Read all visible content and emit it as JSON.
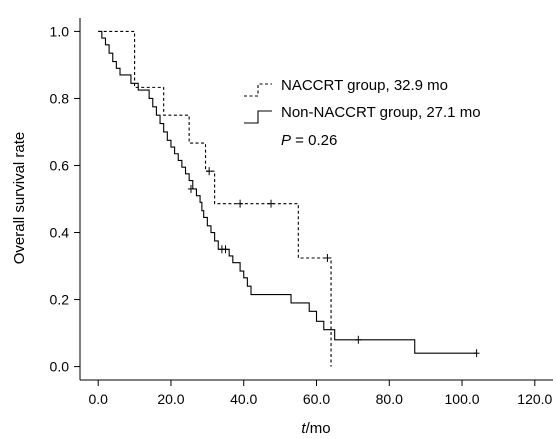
{
  "chart_data": {
    "type": "line",
    "subtype": "kaplan-meier step",
    "xlabel_prefix": "t",
    "xlabel_suffix": "/mo",
    "ylabel": "Overall survival rate",
    "xlim": [
      -5,
      125
    ],
    "ylim": [
      -0.04,
      1.04
    ],
    "xticks": [
      0,
      20,
      40,
      60,
      80,
      100,
      120
    ],
    "xtick_labels": [
      "0.0",
      "20.0",
      "40.0",
      "60.0",
      "80.0",
      "100.0",
      "120.0"
    ],
    "yticks": [
      0,
      0.2,
      0.4,
      0.6,
      0.8,
      1.0
    ],
    "ytick_labels": [
      "0.0",
      "0.2",
      "0.4",
      "0.6",
      "0.8",
      "1.0"
    ],
    "grid": false,
    "legend_position": "top-right",
    "annotation": {
      "italic": "P",
      "text": " = 0.26"
    },
    "series": [
      {
        "name": "NACCRT group, 32.9 mo",
        "style": "dashed",
        "steps": [
          [
            0,
            1.0
          ],
          [
            10,
            0.833
          ],
          [
            18,
            0.75
          ],
          [
            25,
            0.667
          ],
          [
            29.5,
            0.583
          ],
          [
            32,
            0.486
          ],
          [
            55,
            0.324
          ],
          [
            64,
            0.0
          ]
        ],
        "end_x": 64,
        "censored": [
          [
            30.5,
            0.583
          ],
          [
            39,
            0.486
          ],
          [
            47.5,
            0.486
          ],
          [
            63,
            0.324
          ]
        ]
      },
      {
        "name": "Non-NACCRT group, 27.1 mo",
        "style": "solid",
        "steps": [
          [
            0,
            1.0
          ],
          [
            1,
            0.98
          ],
          [
            2,
            0.96
          ],
          [
            3,
            0.935
          ],
          [
            4,
            0.91
          ],
          [
            5,
            0.89
          ],
          [
            6,
            0.87
          ],
          [
            9,
            0.845
          ],
          [
            11,
            0.825
          ],
          [
            14,
            0.8
          ],
          [
            15,
            0.775
          ],
          [
            16,
            0.75
          ],
          [
            17,
            0.725
          ],
          [
            18,
            0.7
          ],
          [
            19,
            0.675
          ],
          [
            20,
            0.655
          ],
          [
            21,
            0.635
          ],
          [
            22,
            0.615
          ],
          [
            23,
            0.595
          ],
          [
            24,
            0.575
          ],
          [
            25,
            0.555
          ],
          [
            26,
            0.53
          ],
          [
            27,
            0.51
          ],
          [
            28,
            0.49
          ],
          [
            28.5,
            0.465
          ],
          [
            29,
            0.445
          ],
          [
            30,
            0.42
          ],
          [
            31,
            0.4
          ],
          [
            32,
            0.375
          ],
          [
            33,
            0.35
          ],
          [
            36,
            0.33
          ],
          [
            37,
            0.31
          ],
          [
            39,
            0.285
          ],
          [
            40,
            0.265
          ],
          [
            41,
            0.24
          ],
          [
            42,
            0.215
          ],
          [
            53,
            0.19
          ],
          [
            58,
            0.165
          ],
          [
            60,
            0.135
          ],
          [
            62,
            0.11
          ],
          [
            65,
            0.08
          ],
          [
            87,
            0.04
          ]
        ],
        "end_x": 104,
        "censored": [
          [
            25.5,
            0.53
          ],
          [
            34,
            0.35
          ],
          [
            35,
            0.35
          ],
          [
            71.5,
            0.08
          ],
          [
            104,
            0.04
          ]
        ]
      }
    ]
  }
}
